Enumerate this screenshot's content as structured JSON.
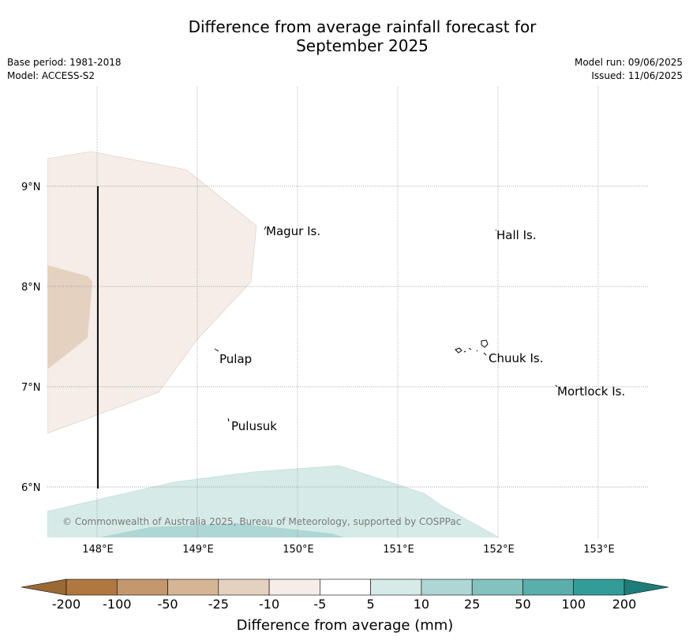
{
  "title_line1": "Difference from average rainfall forecast for",
  "title_line2": "September 2025",
  "base_period": "Base period: 1981-2018",
  "model": "Model: ACCESS-S2",
  "model_run": "Model run: 09/06/2025",
  "issued": "Issued: 11/06/2025",
  "copyright": "© Commonwealth of Australia 2025, Bureau of Meteorology, supported by COSPPac",
  "map": {
    "lon_ticks": [
      "148°E",
      "149°E",
      "150°E",
      "151°E",
      "152°E",
      "153°E"
    ],
    "lat_ticks": [
      "9°N",
      "8°N",
      "7°N",
      "6°N"
    ],
    "places": [
      {
        "name": "Magur Is."
      },
      {
        "name": "Hall Is."
      },
      {
        "name": "Pulap"
      },
      {
        "name": "Chuuk Is."
      },
      {
        "name": "Mortlock Is."
      },
      {
        "name": "Pulusuk"
      }
    ]
  },
  "colorbar": {
    "title": "Difference from average (mm)",
    "ticks": [
      "-200",
      "-100",
      "-50",
      "-25",
      "-10",
      "-5",
      "5",
      "10",
      "25",
      "50",
      "100",
      "200"
    ],
    "colors": [
      "#9a6a35",
      "#b07840",
      "#c4976c",
      "#d6b595",
      "#e4d1c0",
      "#f5ede7",
      "#ffffff",
      "#d6ebe8",
      "#add6d4",
      "#83c2be",
      "#5aafab",
      "#329d98",
      "#1f7d79"
    ]
  }
}
